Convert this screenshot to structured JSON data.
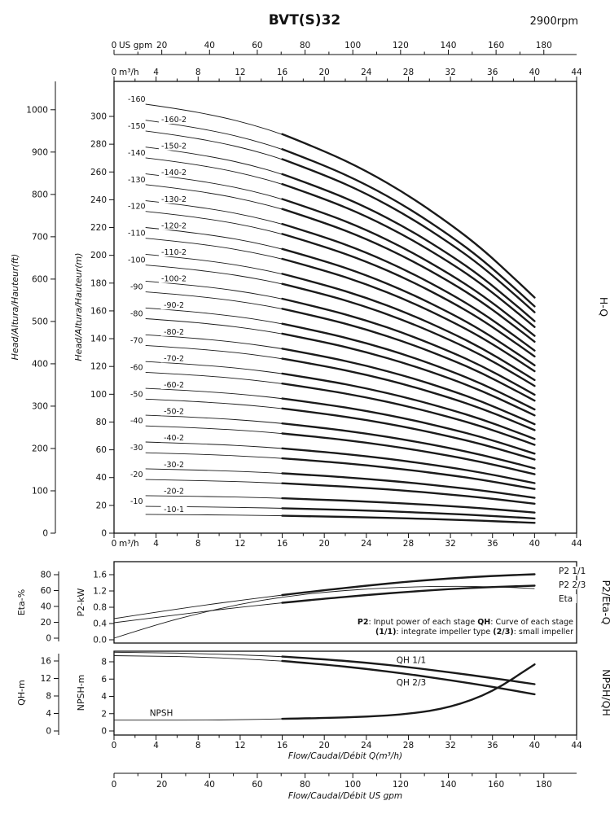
{
  "header": {
    "title": "BVT(S)32",
    "rpm": "2900rpm"
  },
  "side_labels": {
    "hq": "H-Q",
    "p2_eta": "P2/Eta-Q",
    "npsh_qh": "NPSH/QH"
  },
  "axis_titles": {
    "head_ft": "Head/Altura/Hauteur(ft)",
    "head_m": "Head/Altura/Hauteur(m)",
    "eta": "Eta-%",
    "p2": "P2-kW",
    "qh": "QH-m",
    "npsh": "NPSH-m"
  },
  "captions": {
    "flow_m3h": "Flow/Caudal/Débit Q(m³/h)",
    "flow_gpm": "Flow/Caudal/Débit  US gpm"
  },
  "axes": {
    "gpm_top": {
      "unit": "US gpm",
      "ticks": [
        0,
        20,
        40,
        60,
        80,
        100,
        120,
        140,
        160,
        180
      ]
    },
    "m3h_top": {
      "unit": "m³/h",
      "ticks": [
        0,
        4,
        8,
        12,
        16,
        20,
        24,
        28,
        32,
        36,
        40,
        44
      ]
    },
    "m3h_main_bottom": {
      "unit": "m³/h",
      "ticks": [
        0,
        4,
        8,
        12,
        16,
        20,
        24,
        28,
        32,
        36,
        40,
        44
      ]
    },
    "ft": {
      "ticks": [
        0,
        100,
        200,
        300,
        400,
        500,
        600,
        700,
        800,
        900,
        1000
      ]
    },
    "m": {
      "ticks": [
        0,
        20,
        40,
        60,
        80,
        100,
        120,
        140,
        160,
        180,
        200,
        220,
        240,
        260,
        280,
        300
      ]
    },
    "eta": {
      "ticks": [
        0,
        20,
        40,
        60,
        80
      ]
    },
    "p2": {
      "ticks": [
        "0.0",
        "0.4",
        "0.8",
        "1.2",
        "1.6"
      ]
    },
    "qh": {
      "ticks": [
        0,
        4,
        8,
        12,
        16
      ]
    },
    "npsh": {
      "ticks": [
        0,
        2,
        4,
        6,
        8
      ]
    },
    "m3h_bottom": {
      "ticks": [
        0,
        4,
        8,
        12,
        16,
        20,
        24,
        28,
        32,
        36,
        40,
        44
      ]
    },
    "gpm_bottom": {
      "ticks": [
        0,
        20,
        40,
        60,
        80,
        100,
        120,
        140,
        160,
        180
      ]
    }
  },
  "note_lines": [
    {
      "segments": [
        {
          "t": "P2",
          "b": true
        },
        {
          "t": ": Input power of each stage ",
          "b": false
        },
        {
          "t": "QH",
          "b": true
        },
        {
          "t": ": Curve of each stage",
          "b": false
        }
      ]
    },
    {
      "segments": [
        {
          "t": "(1/1)",
          "b": true
        },
        {
          "t": ": integrate impeller type ",
          "b": false
        },
        {
          "t": "(2/3)",
          "b": true
        },
        {
          "t": ": small impeller",
          "b": false
        }
      ]
    }
  ],
  "chart_data": [
    {
      "type": "line",
      "name": "H-Q",
      "xlabel": "Flow Q (m³/h)",
      "ylabel": "Head (m)",
      "x_range_m3h": [
        0,
        44
      ],
      "y_range_m": [
        0,
        325
      ],
      "flow_m3h": [
        3,
        6,
        10,
        13,
        16,
        20,
        24,
        28,
        32,
        35,
        38,
        40
      ],
      "head_per_stage_m": [
        19.3,
        19.1,
        18.75,
        18.4,
        17.95,
        17.2,
        16.3,
        15.2,
        13.9,
        12.8,
        11.5,
        10.6
      ],
      "series_note": "head(Q) = head_per_stage_m × head_factor",
      "series": [
        {
          "label": "-160",
          "head_factor": 16
        },
        {
          "label": "-160-2",
          "head_factor": 15.4
        },
        {
          "label": "-150",
          "head_factor": 15
        },
        {
          "label": "-150-2",
          "head_factor": 14.4
        },
        {
          "label": "-140",
          "head_factor": 14
        },
        {
          "label": "-140-2",
          "head_factor": 13.4
        },
        {
          "label": "-130",
          "head_factor": 13
        },
        {
          "label": "-130-2",
          "head_factor": 12.4
        },
        {
          "label": "-120",
          "head_factor": 12
        },
        {
          "label": "-120-2",
          "head_factor": 11.4
        },
        {
          "label": "-110",
          "head_factor": 11
        },
        {
          "label": "-110-2",
          "head_factor": 10.4
        },
        {
          "label": "-100",
          "head_factor": 10
        },
        {
          "label": "-100-2",
          "head_factor": 9.4
        },
        {
          "label": "-90",
          "head_factor": 9
        },
        {
          "label": "-90-2",
          "head_factor": 8.4
        },
        {
          "label": "-80",
          "head_factor": 8
        },
        {
          "label": "-80-2",
          "head_factor": 7.4
        },
        {
          "label": "-70",
          "head_factor": 7
        },
        {
          "label": "-70-2",
          "head_factor": 6.4
        },
        {
          "label": "-60",
          "head_factor": 6
        },
        {
          "label": "-60-2",
          "head_factor": 5.4
        },
        {
          "label": "-50",
          "head_factor": 5
        },
        {
          "label": "-50-2",
          "head_factor": 4.4
        },
        {
          "label": "-40",
          "head_factor": 4
        },
        {
          "label": "-40-2",
          "head_factor": 3.4
        },
        {
          "label": "-30",
          "head_factor": 3
        },
        {
          "label": "-30-2",
          "head_factor": 2.4
        },
        {
          "label": "-20",
          "head_factor": 2
        },
        {
          "label": "-20-2",
          "head_factor": 1.4
        },
        {
          "label": "-10",
          "head_factor": 1
        },
        {
          "label": "-10-1",
          "head_factor": 0.7
        }
      ]
    },
    {
      "type": "line",
      "name": "P2/Eta-Q",
      "x_m3h": [
        0,
        4,
        8,
        12,
        16,
        20,
        24,
        28,
        32,
        36,
        40
      ],
      "p2_range_kw": [
        0,
        1.9
      ],
      "eta_range_pct": [
        0,
        84
      ],
      "series": [
        {
          "name": "P2 1/1",
          "axis": "p2_kw",
          "values": [
            0.52,
            0.68,
            0.83,
            0.97,
            1.1,
            1.22,
            1.33,
            1.43,
            1.51,
            1.57,
            1.61
          ]
        },
        {
          "name": "P2 2/3",
          "axis": "p2_kw",
          "values": [
            0.42,
            0.55,
            0.68,
            0.8,
            0.91,
            1.01,
            1.1,
            1.18,
            1.25,
            1.3,
            1.33
          ]
        },
        {
          "name": "Eta",
          "axis": "eta_pct",
          "values": [
            0,
            17,
            31,
            43,
            52,
            58,
            62,
            64.5,
            65.5,
            65,
            62.5
          ]
        }
      ]
    },
    {
      "type": "line",
      "name": "NPSH/QH",
      "x_m3h": [
        0,
        4,
        8,
        12,
        16,
        20,
        24,
        28,
        32,
        36,
        40
      ],
      "qh_range_m": [
        0,
        19
      ],
      "npsh_range_m": [
        0,
        9.5
      ],
      "series": [
        {
          "name": "QH 1/1",
          "axis": "qh_m",
          "values": [
            18.0,
            17.9,
            17.7,
            17.4,
            17.0,
            16.4,
            15.6,
            14.6,
            13.4,
            12.1,
            10.7
          ]
        },
        {
          "name": "QH 2/3",
          "axis": "qh_m",
          "values": [
            17.2,
            17.1,
            16.9,
            16.5,
            16.0,
            15.2,
            14.2,
            13.0,
            11.6,
            10.1,
            8.4
          ]
        },
        {
          "name": "NPSH",
          "axis": "npsh_m",
          "values": [
            1.25,
            1.25,
            1.25,
            1.3,
            1.4,
            1.5,
            1.65,
            1.95,
            2.7,
            4.5,
            7.7
          ]
        }
      ]
    }
  ]
}
